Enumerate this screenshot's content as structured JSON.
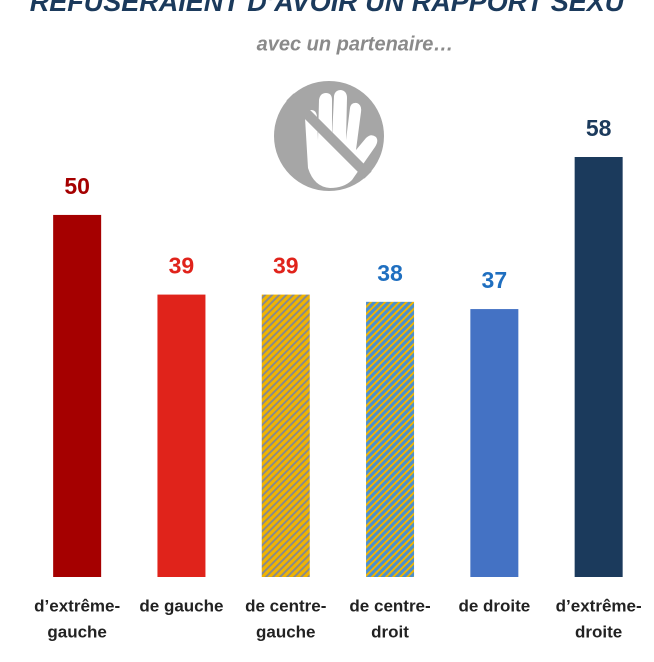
{
  "chart_data": {
    "type": "bar",
    "title": "REFUSERAIENT D’AVOIR UN RAPPORT SEXU",
    "subtitle": "avec un partenaire…",
    "categories": [
      [
        "d’extrême-",
        "gauche"
      ],
      [
        "de gauche"
      ],
      [
        "de centre-",
        "gauche"
      ],
      [
        "de centre-",
        "droit"
      ],
      [
        "de droite"
      ],
      [
        "d’extrême-",
        "droite"
      ]
    ],
    "values": [
      50,
      39,
      39,
      38,
      37,
      58
    ],
    "colors": [
      "#a50000",
      "#e0231b",
      "#f0b400",
      "#4a8fd0",
      "#4472c4",
      "#1b3a5c"
    ],
    "hatch": [
      null,
      null,
      "#8a8a8a",
      "#f0b400",
      null,
      null
    ],
    "label_colors": [
      "#a50000",
      "#e0231b",
      "#e0231b",
      "#1f6fc0",
      "#1f6fc0",
      "#1b3a5c"
    ],
    "ylim": [
      0,
      58
    ]
  }
}
